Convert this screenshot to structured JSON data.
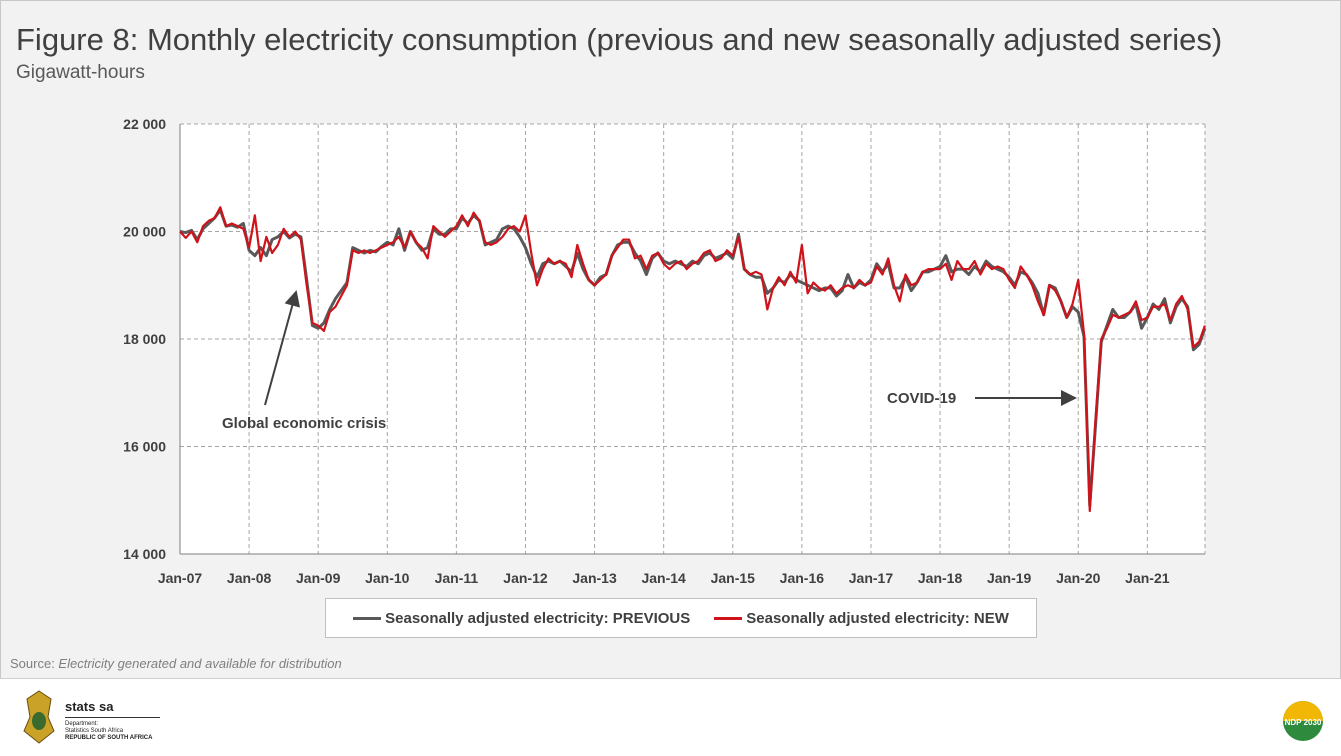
{
  "title": "Figure 8: Monthly electricity consumption (previous and new seasonally adjusted series)",
  "subtitle": "Gigawatt-hours",
  "source_label": "Source: ",
  "source_text": "Electricity generated and available for distribution",
  "footer": {
    "logo_text": "stats sa",
    "dept_line1": "Department:",
    "dept_line2": "Statistics South Africa",
    "dept_line3": "REPUBLIC OF SOUTH AFRICA",
    "ndp_logo_text": "NDP 2030"
  },
  "chart_data": {
    "type": "line",
    "title": "Figure 8: Monthly electricity consumption (previous and new seasonally adjusted series)",
    "ylabel": "Gigawatt-hours",
    "ylim": [
      14000,
      22000
    ],
    "yticks": [
      "14 000",
      "16 000",
      "18 000",
      "20 000",
      "22 000"
    ],
    "ytick_values": [
      14000,
      16000,
      18000,
      20000,
      22000
    ],
    "xticks": [
      "Jan-07",
      "Jan-08",
      "Jan-09",
      "Jan-10",
      "Jan-11",
      "Jan-12",
      "Jan-13",
      "Jan-14",
      "Jan-15",
      "Jan-16",
      "Jan-17",
      "Jan-18",
      "Jan-19",
      "Jan-20",
      "Jan-21"
    ],
    "x_start": "Jan-07",
    "x_end": "Nov-21",
    "frequency": "monthly",
    "grid": true,
    "legend_position": "bottom",
    "colors": {
      "previous": "#595959",
      "new": "#d0121a"
    },
    "annotations": [
      {
        "text": "Global economic crisis",
        "points_to": "Nov-08"
      },
      {
        "text": "COVID-19",
        "points_to": "Mar-20"
      }
    ],
    "series": [
      {
        "name": "Seasonally adjusted electricity: PREVIOUS",
        "values": [
          20000,
          19980,
          20020,
          19850,
          20050,
          20150,
          20250,
          20400,
          20100,
          20120,
          20080,
          20150,
          19650,
          19550,
          19700,
          19550,
          19850,
          19900,
          20000,
          19880,
          19950,
          19900,
          19100,
          18250,
          18200,
          18300,
          18550,
          18750,
          18900,
          19050,
          19700,
          19650,
          19600,
          19650,
          19620,
          19720,
          19800,
          19750,
          20050,
          19650,
          20000,
          19800,
          19650,
          19700,
          20050,
          19950,
          19950,
          20050,
          20050,
          20250,
          20150,
          20300,
          20200,
          19750,
          19800,
          19850,
          20050,
          20100,
          20050,
          19900,
          19700,
          19400,
          19150,
          19400,
          19450,
          19400,
          19450,
          19350,
          19250,
          19600,
          19300,
          19100,
          19000,
          19150,
          19200,
          19550,
          19750,
          19800,
          19800,
          19600,
          19450,
          19200,
          19500,
          19600,
          19450,
          19400,
          19450,
          19400,
          19350,
          19450,
          19400,
          19550,
          19600,
          19500,
          19550,
          19600,
          19500,
          19950,
          19300,
          19200,
          19150,
          19150,
          18850,
          18950,
          19100,
          19050,
          19200,
          19100,
          19050,
          19000,
          18950,
          18900,
          18950,
          18950,
          18800,
          18900,
          19200,
          18950,
          19050,
          19000,
          19100,
          19400,
          19250,
          19400,
          18950,
          18950,
          19150,
          18900,
          19050,
          19250,
          19250,
          19300,
          19350,
          19550,
          19250,
          19300,
          19300,
          19200,
          19350,
          19250,
          19450,
          19350,
          19300,
          19250,
          19150,
          19000,
          19250,
          19200,
          19050,
          18850,
          18450,
          19000,
          18950,
          18700,
          18400,
          18600,
          18500,
          18050,
          14900,
          16400,
          17950,
          18250,
          18550,
          18400,
          18400,
          18500,
          18650,
          18200,
          18400,
          18650,
          18550,
          18750,
          18300,
          18600,
          18750,
          18600,
          17800,
          17900,
          18200
        ]
      },
      {
        "name": "Seasonally adjusted electricity: NEW",
        "values": [
          20000,
          19880,
          20000,
          19800,
          20100,
          20200,
          20250,
          20450,
          20100,
          20150,
          20100,
          20050,
          19700,
          20300,
          19450,
          19900,
          19600,
          19750,
          20050,
          19900,
          20000,
          19850,
          19000,
          18300,
          18250,
          18150,
          18500,
          18600,
          18800,
          19000,
          19650,
          19600,
          19650,
          19600,
          19650,
          19700,
          19750,
          19800,
          19900,
          19700,
          20000,
          19800,
          19700,
          19500,
          20100,
          20000,
          19900,
          20000,
          20100,
          20300,
          20100,
          20350,
          20200,
          19800,
          19750,
          19800,
          19900,
          20050,
          20100,
          20000,
          20300,
          19600,
          19000,
          19300,
          19500,
          19400,
          19450,
          19400,
          19150,
          19750,
          19400,
          19100,
          19000,
          19100,
          19200,
          19550,
          19700,
          19850,
          19850,
          19500,
          19550,
          19300,
          19550,
          19600,
          19400,
          19300,
          19400,
          19450,
          19300,
          19400,
          19450,
          19600,
          19650,
          19450,
          19500,
          19650,
          19550,
          19900,
          19300,
          19200,
          19250,
          19200,
          18550,
          18950,
          19150,
          19000,
          19250,
          19050,
          19750,
          18850,
          19050,
          18950,
          18900,
          19000,
          18850,
          18950,
          19000,
          18950,
          19100,
          19000,
          19050,
          19350,
          19200,
          19500,
          19000,
          18700,
          19200,
          19000,
          19050,
          19250,
          19300,
          19300,
          19300,
          19400,
          19100,
          19450,
          19300,
          19300,
          19450,
          19200,
          19400,
          19300,
          19350,
          19300,
          19100,
          18950,
          19350,
          19200,
          19000,
          18700,
          18450,
          19000,
          18900,
          18700,
          18400,
          18650,
          19100,
          18100,
          14800,
          16500,
          18000,
          18200,
          18450,
          18400,
          18450,
          18500,
          18700,
          18350,
          18400,
          18600,
          18600,
          18650,
          18350,
          18650,
          18800,
          18550,
          17850,
          17950,
          18250
        ]
      }
    ]
  }
}
